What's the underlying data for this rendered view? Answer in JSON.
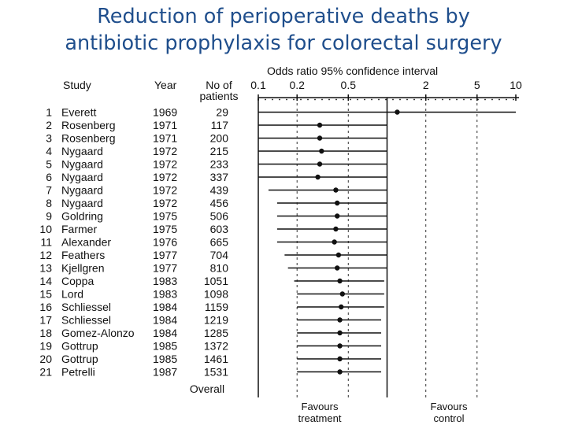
{
  "title_line1": "Reduction of perioperative deaths by",
  "title_line2": "antibiotic prophylaxis for colorectal surgery",
  "chart_data": {
    "type": "forest",
    "scale": "log",
    "xlabel": "Odds ratio 95% confidence interval",
    "xticks": [
      0.1,
      0.2,
      0.5,
      2,
      5,
      10
    ],
    "reference_line": 1,
    "columns": [
      "Study",
      "Year",
      "No of patients"
    ],
    "favours_left": [
      "Favours",
      "treatment"
    ],
    "favours_right": [
      "Favours",
      "control"
    ],
    "overall_label": "Overall",
    "rows": [
      {
        "no": 1,
        "study": "Everett",
        "year": "1969",
        "n": "29",
        "or": 1.2,
        "lo": 0.1,
        "hi": 10
      },
      {
        "no": 2,
        "study": "Rosenberg",
        "year": "1971",
        "n": "117",
        "or": 0.3,
        "lo": 0.1,
        "hi": 1.0
      },
      {
        "no": 3,
        "study": "Rosenberg",
        "year": "1971",
        "n": "200",
        "or": 0.3,
        "lo": 0.1,
        "hi": 1.0
      },
      {
        "no": 4,
        "study": "Nygaard",
        "year": "1972",
        "n": "215",
        "or": 0.31,
        "lo": 0.1,
        "hi": 1.0
      },
      {
        "no": 5,
        "study": "Nygaard",
        "year": "1972",
        "n": "233",
        "or": 0.3,
        "lo": 0.1,
        "hi": 1.0
      },
      {
        "no": 6,
        "study": "Nygaard",
        "year": "1972",
        "n": "337",
        "or": 0.29,
        "lo": 0.1,
        "hi": 1.0
      },
      {
        "no": 7,
        "study": "Nygaard",
        "year": "1972",
        "n": "439",
        "or": 0.4,
        "lo": 0.12,
        "hi": 1.0
      },
      {
        "no": 8,
        "study": "Nygaard",
        "year": "1972",
        "n": "456",
        "or": 0.41,
        "lo": 0.14,
        "hi": 1.0
      },
      {
        "no": 9,
        "study": "Goldring",
        "year": "1975",
        "n": "506",
        "or": 0.41,
        "lo": 0.14,
        "hi": 1.0
      },
      {
        "no": 10,
        "study": "Farmer",
        "year": "1975",
        "n": "603",
        "or": 0.4,
        "lo": 0.14,
        "hi": 1.0
      },
      {
        "no": 11,
        "study": "Alexander",
        "year": "1976",
        "n": "665",
        "or": 0.39,
        "lo": 0.14,
        "hi": 1.0
      },
      {
        "no": 12,
        "study": "Feathers",
        "year": "1977",
        "n": "704",
        "or": 0.42,
        "lo": 0.16,
        "hi": 1.0
      },
      {
        "no": 13,
        "study": "Kjellgren",
        "year": "1977",
        "n": "810",
        "or": 0.41,
        "lo": 0.17,
        "hi": 1.0
      },
      {
        "no": 14,
        "study": "Coppa",
        "year": "1983",
        "n": "1051",
        "or": 0.43,
        "lo": 0.19,
        "hi": 0.95
      },
      {
        "no": 15,
        "study": "Lord",
        "year": "1983",
        "n": "1098",
        "or": 0.45,
        "lo": 0.2,
        "hi": 0.95
      },
      {
        "no": 16,
        "study": "Schliessel",
        "year": "1984",
        "n": "1159",
        "or": 0.44,
        "lo": 0.2,
        "hi": 0.95
      },
      {
        "no": 17,
        "study": "Schliessel",
        "year": "1984",
        "n": "1219",
        "or": 0.43,
        "lo": 0.2,
        "hi": 0.9
      },
      {
        "no": 18,
        "study": "Gomez-Alonzo",
        "year": "1984",
        "n": "1285",
        "or": 0.43,
        "lo": 0.2,
        "hi": 0.9
      },
      {
        "no": 19,
        "study": "Gottrup",
        "year": "1985",
        "n": "1372",
        "or": 0.43,
        "lo": 0.2,
        "hi": 0.9
      },
      {
        "no": 20,
        "study": "Gottrup",
        "year": "1985",
        "n": "1461",
        "or": 0.43,
        "lo": 0.2,
        "hi": 0.9
      },
      {
        "no": 21,
        "study": "Petrelli",
        "year": "1987",
        "n": "1531",
        "or": 0.43,
        "lo": 0.2,
        "hi": 0.9
      }
    ]
  }
}
